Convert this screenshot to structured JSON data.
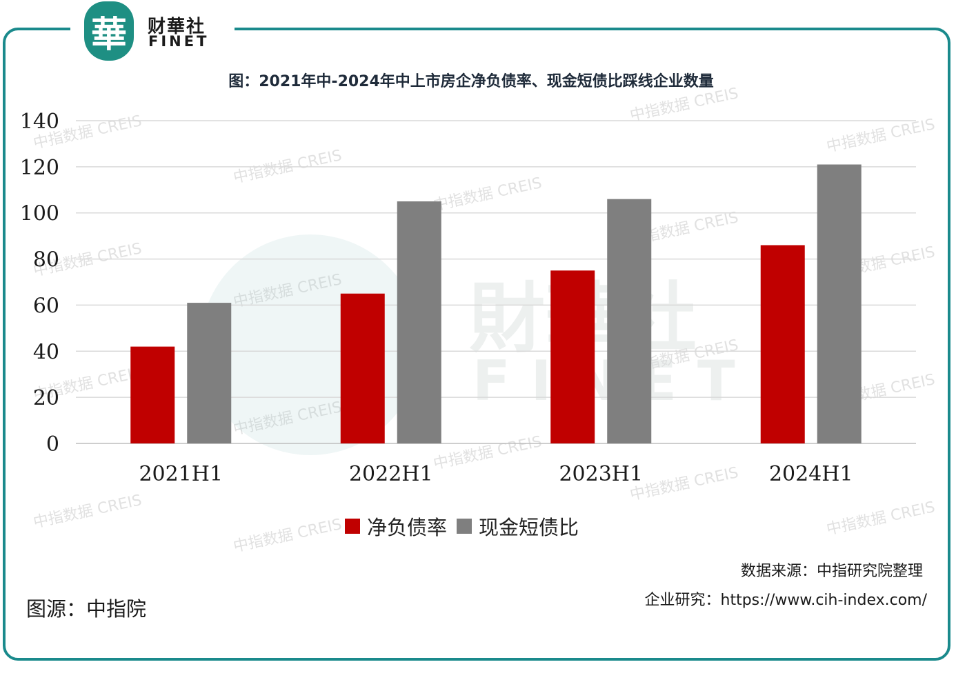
{
  "brand": {
    "logo_glyph": "華",
    "name_cn": "财華社",
    "name_en": "FINET",
    "color": "#1e8f83"
  },
  "chart_data": {
    "type": "bar",
    "title": "图：2021年中-2024年中上市房企净负债率、现金短债比踩线企业数量",
    "categories": [
      "2021H1",
      "2022H1",
      "2023H1",
      "2024H1"
    ],
    "series": [
      {
        "name": "净负债率",
        "color": "#c00000",
        "values": [
          42,
          65,
          75,
          86
        ]
      },
      {
        "name": "现金短债比",
        "color": "#7f7f7f",
        "values": [
          61,
          105,
          106,
          121
        ]
      }
    ],
    "yticks": [
      0,
      20,
      40,
      60,
      80,
      100,
      120,
      140
    ],
    "ylim": [
      0,
      140
    ],
    "grid": true,
    "legend_position": "bottom"
  },
  "watermark": {
    "text": "中指数据 CREIS",
    "center_cn": "財華社",
    "center_en": "FINET"
  },
  "footer": {
    "source": "数据来源：中指研究院整理",
    "research": "企业研究：https://www.cih-index.com/",
    "image_source": "图源：中指院"
  }
}
